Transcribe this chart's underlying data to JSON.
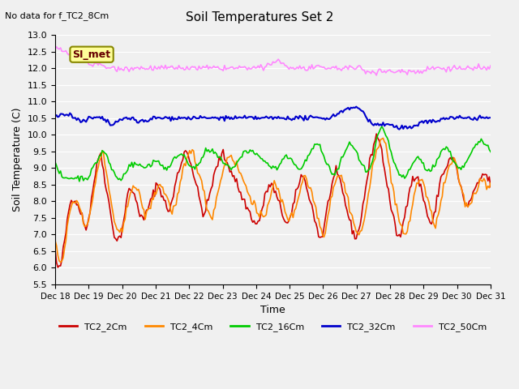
{
  "title": "Soil Temperatures Set 2",
  "subtitle": "No data for f_TC2_8Cm",
  "xlabel": "Time",
  "ylabel": "Soil Temperature (C)",
  "ylim": [
    5.5,
    13.0
  ],
  "yticks": [
    5.5,
    6.0,
    6.5,
    7.0,
    7.5,
    8.0,
    8.5,
    9.0,
    9.5,
    10.0,
    10.5,
    11.0,
    11.5,
    12.0,
    12.5,
    13.0
  ],
  "xtick_labels": [
    "Dec 18",
    "Dec 19",
    "Dec 20",
    "Dec 21",
    "Dec 22",
    "Dec 23",
    "Dec 24",
    "Dec 25",
    "Dec 26",
    "Dec 27",
    "Dec 28",
    "Dec 29",
    "Dec 30",
    "Dec 31"
  ],
  "n_points": 325,
  "legend_labels": [
    "TC2_2Cm",
    "TC2_4Cm",
    "TC2_16Cm",
    "TC2_32Cm",
    "TC2_50Cm"
  ],
  "line_colors": [
    "#cc0000",
    "#ff8800",
    "#00cc00",
    "#0000cc",
    "#ff88ff"
  ],
  "line_widths": [
    1.2,
    1.2,
    1.2,
    1.5,
    1.2
  ],
  "plot_bg_color": "#f0f0f0",
  "annotation_text": "SI_met",
  "annotation_bg": "#ffff99",
  "annotation_border": "#888800",
  "TC2_2Cm": [
    6.5,
    6.1,
    5.9,
    6.0,
    6.2,
    6.5,
    6.8,
    7.2,
    7.6,
    7.9,
    8.0,
    8.1,
    8.1,
    8.0,
    7.9,
    7.8,
    7.7,
    7.5,
    7.3,
    7.2,
    7.3,
    7.5,
    7.8,
    8.2,
    8.5,
    8.8,
    9.0,
    9.3,
    9.5,
    9.3,
    9.0,
    8.7,
    8.4,
    8.1,
    7.8,
    7.5,
    7.2,
    7.0,
    6.9,
    6.8,
    6.9,
    7.0,
    7.2,
    7.5,
    7.8,
    8.1,
    8.3,
    8.4,
    8.3,
    8.2,
    8.1,
    8.0,
    7.8,
    7.6,
    7.5,
    7.4,
    7.5,
    7.7,
    7.8,
    7.9,
    8.0,
    8.2,
    8.3,
    8.5,
    8.5,
    8.4,
    8.3,
    8.2,
    8.0,
    7.9,
    7.8,
    7.7,
    7.8,
    8.0,
    8.2,
    8.5,
    8.7,
    8.9,
    9.0,
    9.2,
    9.4,
    9.5,
    9.5,
    9.4,
    9.3,
    9.1,
    8.9,
    8.7,
    8.5,
    8.3,
    8.1,
    7.9,
    7.7,
    7.6,
    7.7,
    7.9,
    8.1,
    8.3,
    8.5,
    8.7,
    8.9,
    9.0,
    9.2,
    9.3,
    9.4,
    9.4,
    9.3,
    9.2,
    9.1,
    9.0,
    8.9,
    8.8,
    8.7,
    8.6,
    8.5,
    8.3,
    8.2,
    8.1,
    8.0,
    7.9,
    7.8,
    7.7,
    7.6,
    7.5,
    7.4,
    7.3,
    7.3,
    7.4,
    7.5,
    7.7,
    7.9,
    8.1,
    8.3,
    8.4,
    8.5,
    8.5,
    8.4,
    8.3,
    8.2,
    8.0,
    7.9,
    7.8,
    7.6,
    7.5,
    7.4,
    7.3,
    7.4,
    7.5,
    7.7,
    7.9,
    8.1,
    8.3,
    8.5,
    8.7,
    8.8,
    8.7,
    8.6,
    8.4,
    8.3,
    8.1,
    7.9,
    7.7,
    7.5,
    7.3,
    7.1,
    6.9,
    6.9,
    7.0,
    7.2,
    7.5,
    7.8,
    8.1,
    8.3,
    8.5,
    8.7,
    8.8,
    8.8,
    8.7,
    8.6,
    8.4,
    8.2,
    8.0,
    7.8,
    7.6,
    7.4,
    7.2,
    7.1,
    7.0,
    6.9,
    7.0,
    7.2,
    7.5,
    7.8,
    8.1,
    8.4,
    8.7,
    9.0,
    9.3,
    9.5,
    9.7,
    9.9,
    10.0,
    9.9,
    9.7,
    9.5,
    9.2,
    8.9,
    8.6,
    8.3,
    8.0,
    7.8,
    7.5,
    7.3,
    7.1,
    7.0,
    6.9,
    7.0,
    7.2,
    7.5,
    7.8,
    8.1,
    8.3,
    8.5,
    8.6,
    8.7,
    8.7,
    8.7,
    8.6,
    8.5,
    8.3,
    8.1,
    7.9,
    7.7,
    7.5,
    7.4,
    7.3,
    7.4,
    7.6,
    7.9,
    8.2,
    8.5,
    8.7,
    8.8,
    8.9,
    9.0,
    9.1,
    9.2,
    9.3,
    9.3,
    9.2,
    9.1,
    8.9,
    8.7,
    8.5,
    8.3,
    8.1,
    7.9,
    7.8,
    7.9,
    8.0,
    8.1,
    8.2,
    8.3,
    8.4,
    8.5,
    8.6,
    8.7,
    8.8,
    8.8,
    8.8,
    8.7,
    8.6,
    8.5
  ],
  "TC2_4Cm": [
    6.9,
    6.5,
    6.2,
    6.1,
    6.2,
    6.4,
    6.7,
    7.1,
    7.5,
    7.8,
    7.9,
    8.0,
    8.0,
    8.0,
    7.9,
    7.8,
    7.6,
    7.4,
    7.3,
    7.3,
    7.4,
    7.6,
    7.9,
    8.3,
    8.6,
    8.9,
    9.1,
    9.3,
    9.5,
    9.3,
    9.0,
    8.7,
    8.4,
    8.1,
    7.8,
    7.5,
    7.3,
    7.1,
    7.0,
    7.0,
    7.1,
    7.3,
    7.5,
    7.8,
    8.1,
    8.3,
    8.5,
    8.5,
    8.4,
    8.3,
    8.2,
    8.1,
    7.9,
    7.7,
    7.5,
    7.6,
    7.8,
    7.9,
    8.0,
    8.1,
    8.3,
    8.4,
    8.5,
    8.5,
    8.4,
    8.3,
    8.2,
    8.1,
    7.9,
    7.8,
    7.7,
    7.8,
    7.9,
    8.1,
    8.3,
    8.6,
    8.8,
    9.0,
    9.1,
    9.3,
    9.4,
    9.5,
    9.5,
    9.4,
    9.2,
    9.0,
    8.8,
    8.6,
    8.4,
    8.2,
    8.0,
    7.8,
    7.6,
    7.5,
    7.6,
    7.8,
    8.0,
    8.2,
    8.5,
    8.7,
    8.9,
    9.0,
    9.2,
    9.3,
    9.4,
    9.4,
    9.3,
    9.2,
    9.1,
    9.0,
    8.9,
    8.8,
    8.7,
    8.5,
    8.4,
    8.3,
    8.2,
    8.1,
    8.0,
    7.9,
    7.7,
    7.6,
    7.5,
    7.5,
    7.5,
    7.6,
    7.7,
    7.9,
    8.1,
    8.3,
    8.5,
    8.5,
    8.4,
    8.3,
    8.2,
    8.0,
    7.9,
    7.8,
    7.6,
    7.5,
    7.5,
    7.5,
    7.6,
    7.7,
    7.9,
    8.1,
    8.3,
    8.5,
    8.7,
    8.8,
    8.7,
    8.5,
    8.4,
    8.3,
    8.1,
    7.9,
    7.7,
    7.5,
    7.3,
    7.1,
    7.0,
    7.1,
    7.3,
    7.6,
    7.9,
    8.2,
    8.4,
    8.6,
    8.7,
    8.8,
    8.8,
    8.7,
    8.6,
    8.4,
    8.2,
    8.0,
    7.8,
    7.6,
    7.4,
    7.2,
    7.1,
    7.0,
    7.0,
    7.1,
    7.3,
    7.6,
    7.9,
    8.2,
    8.5,
    8.8,
    9.1,
    9.3,
    9.5,
    9.7,
    9.9,
    10.0,
    9.9,
    9.7,
    9.5,
    9.2,
    8.9,
    8.6,
    8.3,
    8.0,
    7.8,
    7.5,
    7.3,
    7.1,
    7.0,
    7.0,
    7.1,
    7.3,
    7.5,
    7.8,
    8.1,
    8.3,
    8.5,
    8.6,
    8.7,
    8.7,
    8.5,
    8.3,
    8.1,
    7.9,
    7.7,
    7.5,
    7.4,
    7.3,
    7.4,
    7.6,
    7.9,
    8.2,
    8.4,
    8.6,
    8.8,
    9.0,
    9.1,
    9.2,
    9.2,
    9.1,
    8.9,
    8.7,
    8.5,
    8.3,
    8.1,
    7.9,
    7.8,
    7.9,
    8.0,
    8.1,
    8.2,
    8.3,
    8.4,
    8.5,
    8.6,
    8.7,
    8.7,
    8.6,
    8.5,
    8.4,
    8.5
  ],
  "TC2_16Cm": [
    9.1,
    9.0,
    8.9,
    8.8,
    8.7,
    8.7,
    8.7,
    8.7,
    8.7,
    8.7,
    8.7,
    8.7,
    8.7,
    8.7,
    8.7,
    8.7,
    8.7,
    8.7,
    8.7,
    8.8,
    8.9,
    9.0,
    9.1,
    9.2,
    9.3,
    9.4,
    9.5,
    9.5,
    9.4,
    9.3,
    9.1,
    9.0,
    8.9,
    8.8,
    8.7,
    8.7,
    8.6,
    8.7,
    8.8,
    8.9,
    9.0,
    9.1,
    9.1,
    9.1,
    9.1,
    9.1,
    9.1,
    9.1,
    9.0,
    9.0,
    9.0,
    9.1,
    9.1,
    9.1,
    9.2,
    9.2,
    9.2,
    9.2,
    9.1,
    9.1,
    9.0,
    9.0,
    9.0,
    9.0,
    9.1,
    9.2,
    9.3,
    9.4,
    9.4,
    9.4,
    9.4,
    9.4,
    9.3,
    9.2,
    9.1,
    9.1,
    9.0,
    9.0,
    9.0,
    9.1,
    9.2,
    9.3,
    9.4,
    9.5,
    9.5,
    9.5,
    9.5,
    9.5,
    9.4,
    9.4,
    9.3,
    9.3,
    9.2,
    9.2,
    9.1,
    9.1,
    9.0,
    9.0,
    9.0,
    9.0,
    9.1,
    9.2,
    9.3,
    9.4,
    9.5,
    9.5,
    9.5,
    9.5,
    9.5,
    9.5,
    9.4,
    9.4,
    9.4,
    9.3,
    9.3,
    9.2,
    9.2,
    9.1,
    9.1,
    9.0,
    9.0,
    9.0,
    9.0,
    9.0,
    9.1,
    9.2,
    9.3,
    9.3,
    9.3,
    9.3,
    9.2,
    9.2,
    9.1,
    9.1,
    9.0,
    9.0,
    9.0,
    9.1,
    9.2,
    9.3,
    9.4,
    9.5,
    9.6,
    9.7,
    9.7,
    9.7,
    9.6,
    9.5,
    9.4,
    9.2,
    9.1,
    9.0,
    8.9,
    8.8,
    8.8,
    8.9,
    9.0,
    9.1,
    9.3,
    9.4,
    9.5,
    9.6,
    9.7,
    9.7,
    9.7,
    9.6,
    9.5,
    9.3,
    9.2,
    9.1,
    9.0,
    8.9,
    8.9,
    8.9,
    9.0,
    9.2,
    9.5,
    9.8,
    10.0,
    10.1,
    10.2,
    10.1,
    10.0,
    9.9,
    9.7,
    9.5,
    9.3,
    9.1,
    9.0,
    8.9,
    8.8,
    8.7,
    8.7,
    8.7,
    8.8,
    8.9,
    9.0,
    9.1,
    9.2,
    9.3,
    9.3,
    9.3,
    9.2,
    9.1,
    9.0,
    8.9,
    8.9,
    8.9,
    9.0,
    9.1,
    9.2,
    9.3,
    9.4,
    9.5,
    9.6,
    9.6,
    9.6,
    9.5,
    9.4,
    9.3,
    9.2,
    9.1,
    9.0,
    9.0,
    9.0,
    9.0,
    9.1,
    9.2,
    9.3,
    9.4,
    9.5,
    9.6,
    9.7,
    9.7,
    9.8,
    9.8,
    9.8,
    9.7,
    9.7,
    9.6,
    9.5
  ],
  "TC2_32Cm": [
    10.6,
    10.6,
    10.6,
    10.6,
    10.6,
    10.6,
    10.6,
    10.6,
    10.6,
    10.5,
    10.5,
    10.5,
    10.5,
    10.4,
    10.4,
    10.4,
    10.4,
    10.5,
    10.5,
    10.5,
    10.5,
    10.5,
    10.5,
    10.5,
    10.5,
    10.4,
    10.4,
    10.4,
    10.3,
    10.3,
    10.3,
    10.4,
    10.4,
    10.4,
    10.4,
    10.5,
    10.5,
    10.5,
    10.5,
    10.5,
    10.5,
    10.4,
    10.4,
    10.4,
    10.4,
    10.4,
    10.4,
    10.4,
    10.4,
    10.5,
    10.5,
    10.5,
    10.5,
    10.5,
    10.5,
    10.5,
    10.5,
    10.5,
    10.5,
    10.5,
    10.5,
    10.5,
    10.5,
    10.5,
    10.5,
    10.5,
    10.5,
    10.5,
    10.5,
    10.5,
    10.5,
    10.5,
    10.5,
    10.5,
    10.5,
    10.5,
    10.5,
    10.5,
    10.5,
    10.5,
    10.5,
    10.5,
    10.5,
    10.5,
    10.5,
    10.5,
    10.5,
    10.5,
    10.5,
    10.5,
    10.5,
    10.5,
    10.5,
    10.5,
    10.5,
    10.5,
    10.5,
    10.5,
    10.5,
    10.5,
    10.5,
    10.5,
    10.5,
    10.5,
    10.5,
    10.5,
    10.5,
    10.5,
    10.5,
    10.5,
    10.5,
    10.5,
    10.5,
    10.5,
    10.5,
    10.5,
    10.5,
    10.5,
    10.5,
    10.5,
    10.5,
    10.5,
    10.5,
    10.5,
    10.5,
    10.5,
    10.5,
    10.5,
    10.5,
    10.5,
    10.5,
    10.5,
    10.5,
    10.5,
    10.5,
    10.5,
    10.5,
    10.5,
    10.5,
    10.5,
    10.5,
    10.5,
    10.6,
    10.6,
    10.6,
    10.7,
    10.7,
    10.7,
    10.8,
    10.8,
    10.8,
    10.8,
    10.8,
    10.8,
    10.8,
    10.8,
    10.7,
    10.7,
    10.6,
    10.5,
    10.4,
    10.4,
    10.3,
    10.3,
    10.3,
    10.3,
    10.3,
    10.3,
    10.3,
    10.3,
    10.3,
    10.3,
    10.3,
    10.2,
    10.2,
    10.2,
    10.2,
    10.2,
    10.2,
    10.2,
    10.2,
    10.2,
    10.2,
    10.3,
    10.3,
    10.3,
    10.4,
    10.4,
    10.4,
    10.4,
    10.4,
    10.4,
    10.4,
    10.4,
    10.4,
    10.4,
    10.4,
    10.5,
    10.5,
    10.5,
    10.5,
    10.5,
    10.5,
    10.5,
    10.5,
    10.5,
    10.5,
    10.5,
    10.5,
    10.5,
    10.5,
    10.5,
    10.5,
    10.5,
    10.5,
    10.5,
    10.5,
    10.5,
    10.5,
    10.5,
    10.5,
    10.5,
    10.5
  ],
  "TC2_50Cm": [
    12.6,
    12.6,
    12.6,
    12.5,
    12.5,
    12.4,
    12.4,
    12.3,
    12.3,
    12.2,
    12.2,
    12.2,
    12.2,
    12.2,
    12.1,
    12.1,
    12.1,
    12.1,
    12.1,
    12.1,
    12.0,
    12.0,
    12.0,
    12.0,
    12.0,
    12.0,
    12.0,
    12.0,
    12.0,
    12.0,
    12.0,
    12.0,
    12.0,
    12.0,
    12.0,
    12.0,
    12.0,
    12.0,
    12.0,
    12.0,
    12.0,
    12.0,
    12.0,
    12.0,
    12.0,
    12.0,
    12.0,
    12.0,
    12.0,
    12.0,
    12.0,
    12.0,
    12.0,
    12.0,
    12.0,
    12.0,
    12.0,
    12.0,
    12.0,
    12.0,
    12.0,
    12.0,
    12.0,
    12.0,
    12.0,
    12.0,
    12.0,
    12.0,
    12.0,
    12.0,
    12.0,
    12.0,
    12.0,
    12.0,
    12.0,
    12.0,
    12.0,
    12.0,
    12.0,
    12.0,
    12.0,
    12.0,
    12.0,
    12.1,
    12.1,
    12.2,
    12.2,
    12.2,
    12.2,
    12.1,
    12.1,
    12.0,
    12.0,
    12.0,
    12.0,
    12.0,
    12.0,
    12.0,
    12.0,
    12.0,
    12.0,
    12.0,
    12.0,
    12.0,
    12.0,
    12.0,
    12.0,
    12.0,
    12.0,
    12.0,
    12.0,
    12.0,
    12.0,
    12.0,
    12.0,
    12.0,
    12.0,
    12.0,
    12.0,
    12.0,
    12.0,
    11.9,
    11.9,
    11.9,
    11.9,
    11.9,
    11.9,
    11.9,
    11.9,
    11.9,
    11.9,
    11.9,
    11.9,
    11.9,
    11.9,
    11.9,
    11.9,
    11.9,
    11.9,
    11.9,
    11.9,
    11.9,
    11.9,
    11.9,
    11.9,
    12.0,
    12.0,
    12.0,
    12.0,
    12.0,
    12.0,
    12.0,
    12.0,
    12.0,
    12.0,
    12.0,
    12.0,
    12.0,
    12.0,
    12.0,
    12.0,
    12.0,
    12.0,
    12.0,
    12.0,
    12.0,
    12.0,
    12.0,
    12.0,
    12.0,
    12.0
  ]
}
